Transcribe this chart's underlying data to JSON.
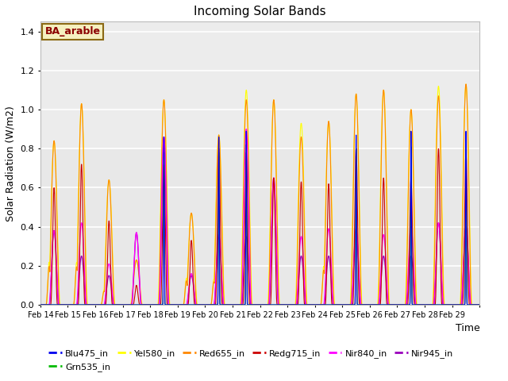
{
  "title": "Incoming Solar Bands",
  "xlabel": "Time",
  "ylabel": "Solar Radiation (W/m2)",
  "annotation_text": "BA_arable",
  "annotation_bg": "#f5f0c0",
  "annotation_border": "#8b6914",
  "annotation_text_color": "#8b0000",
  "ylim": [
    0,
    1.45
  ],
  "yticks": [
    0.0,
    0.2,
    0.4,
    0.6,
    0.8,
    1.0,
    1.2,
    1.4
  ],
  "date_labels": [
    "Feb 14",
    "Feb 15",
    "Feb 16",
    "Feb 17",
    "Feb 18",
    "Feb 19",
    "Feb 20",
    "Feb 21",
    "Feb 22",
    "Feb 23",
    "Feb 24",
    "Feb 25",
    "Feb 26",
    "Feb 27",
    "Feb 28",
    "Feb 29"
  ],
  "colors": {
    "Blu475_in": "#0000ee",
    "Grn535_in": "#00bb00",
    "Yel580_in": "#ffff00",
    "Red655_in": "#ff8800",
    "Redg715_in": "#cc0000",
    "Nir840_in": "#ff00ff",
    "Nir945_in": "#9900bb"
  },
  "background_color": "#e8e8e8",
  "background_light_color": "#f0f0f0",
  "grid_color": "white",
  "n_days": 16,
  "peak_heights_yel": [
    0.84,
    1.03,
    0.64,
    0.23,
    1.05,
    0.47,
    0.87,
    1.1,
    1.05,
    0.93,
    0.94,
    1.08,
    1.1,
    1.0,
    1.12,
    1.13
  ],
  "peak_heights_orange": [
    0.84,
    1.03,
    0.64,
    0.23,
    1.05,
    0.47,
    0.87,
    1.05,
    1.05,
    0.86,
    0.94,
    1.08,
    1.1,
    1.0,
    1.07,
    1.13
  ],
  "peak_heights_magenta": [
    0.38,
    0.42,
    0.21,
    0.37,
    0.86,
    0.16,
    0.36,
    0.9,
    0.65,
    0.35,
    0.39,
    0.39,
    0.36,
    0.4,
    0.42,
    0.4
  ],
  "peak_heights_purple": [
    0.38,
    0.25,
    0.15,
    0.37,
    0.86,
    0.15,
    0.35,
    0.35,
    0.65,
    0.25,
    0.25,
    0.38,
    0.25,
    0.25,
    0.42,
    0.4
  ],
  "peak_heights_red": [
    0.6,
    0.72,
    0.43,
    0.1,
    0.72,
    0.33,
    0.8,
    0.78,
    0.65,
    0.63,
    0.62,
    0.8,
    0.65,
    0.65,
    0.8,
    0.78
  ],
  "peak_heights_blue": [
    0.0,
    0.0,
    0.0,
    0.0,
    0.87,
    0.0,
    0.87,
    0.9,
    0.0,
    0.0,
    0.0,
    0.88,
    0.0,
    0.9,
    0.0,
    0.9
  ],
  "peak_heights_green": [
    0.0,
    0.0,
    0.0,
    0.0,
    0.79,
    0.0,
    0.79,
    0.83,
    0.0,
    0.0,
    0.0,
    0.81,
    0.0,
    0.82,
    0.0,
    0.83
  ],
  "second_peak_factor": [
    0.26,
    0.21,
    0.12,
    0.0,
    0.0,
    0.29,
    0.15,
    0.0,
    0.0,
    0.0,
    0.21,
    0.0,
    0.0,
    0.0,
    0.0,
    0.0
  ]
}
